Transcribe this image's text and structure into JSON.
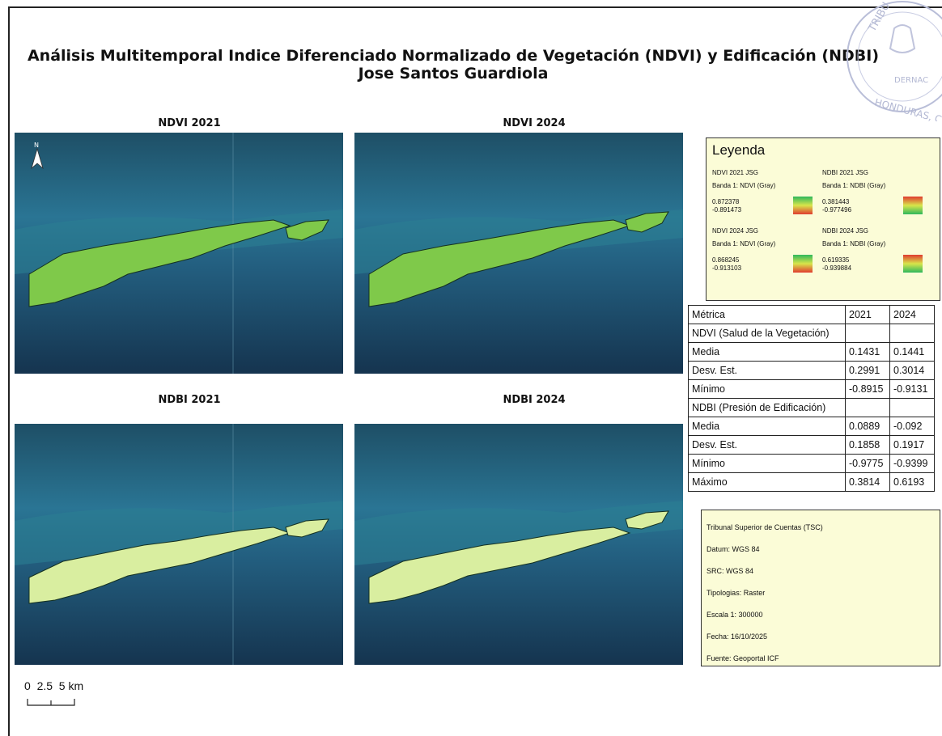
{
  "title": {
    "line1": "Análisis Multitemporal Indice Diferenciado Normalizado de Vegetación (NDVI) y Edificación (NDBI)",
    "line2": "Jose Santos Guardiola"
  },
  "panels": {
    "ndvi2021": "NDVI 2021",
    "ndvi2024": "NDVI 2024",
    "ndbi2021": "NDBI 2021",
    "ndbi2024": "NDBI 2024"
  },
  "legend": {
    "title": "Leyenda",
    "ndvi2021": {
      "name": "NDVI 2021 JSG",
      "band": "Banda 1: NDVI (Gray)",
      "max": "0.872378",
      "min": "-0.891473"
    },
    "ndbi2021": {
      "name": "NDBI 2021 JSG",
      "band": "Banda 1: NDBI (Gray)",
      "max": "0.381443",
      "min": "-0.977496"
    },
    "ndvi2024": {
      "name": "NDVI 2024 JSG",
      "band": "Banda 1: NDVI (Gray)",
      "max": "0.868245",
      "min": "-0.913103"
    },
    "ndbi2024": {
      "name": "NDBI 2024 JSG",
      "band": "Banda 1: NDBI (Gray)",
      "max": "0.619335",
      "min": "-0.939884"
    }
  },
  "table": {
    "header": [
      "Métrica",
      "2021",
      "2024"
    ],
    "rows": [
      [
        "NDVI (Salud de la Vegetación)",
        "",
        ""
      ],
      [
        "Media",
        "0.1431",
        "0.1441"
      ],
      [
        "Desv. Est.",
        "0.2991",
        "0.3014"
      ],
      [
        "Mínimo",
        "-0.8915",
        "-0.9131"
      ],
      [
        "NDBI (Presión de Edificación)",
        "",
        ""
      ],
      [
        "Media",
        "0.0889",
        "-0.092"
      ],
      [
        "Desv. Est.",
        "0.1858",
        "0.1917"
      ],
      [
        "Mínimo",
        "-0.9775",
        "-0.9399"
      ],
      [
        "Máximo",
        "0.3814",
        "0.6193"
      ]
    ]
  },
  "info": {
    "org": "Tribunal Superior de Cuentas (TSC)",
    "datum": "Datum: WGS 84",
    "src": "SRC: WGS 84",
    "tipologias": "Tipologias: Raster",
    "escala": "Escala 1: 300000",
    "fecha": "Fecha: 16/10/2025",
    "fuente": "Fuente: Geoportal ICF"
  },
  "scalebar": {
    "labels": "0  2.5  5 km"
  },
  "stamp": {
    "text_top": "TRIBU",
    "text_mid": "DERNAC",
    "text_bottom": "HONDURAS, C"
  },
  "colors": {
    "sea": "#1c5a78",
    "ndvi_land": "#7fc94a",
    "ndbi_land": "#d9eea0"
  }
}
